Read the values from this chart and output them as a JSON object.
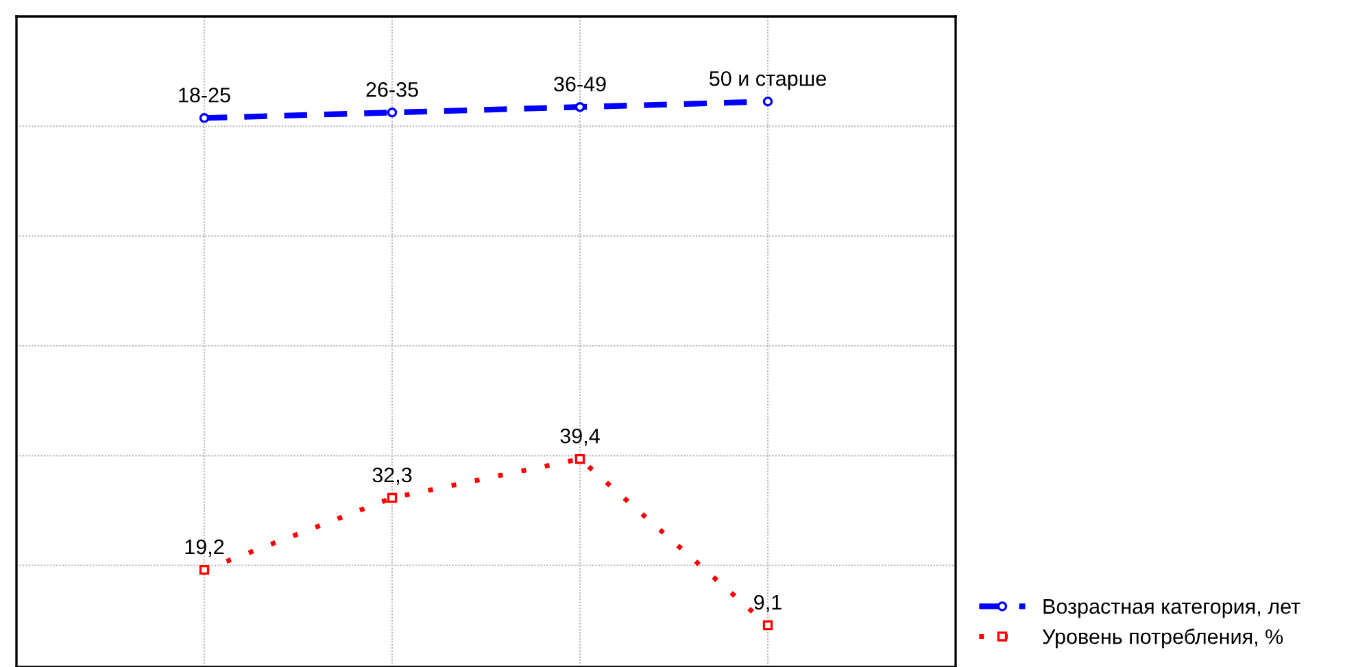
{
  "chart_data": {
    "type": "line",
    "categories": [
      "18-25",
      "26-35",
      "36-49",
      "50 и старше"
    ],
    "series": [
      {
        "name": "Возрастная категория, лет",
        "color": "#0000ff",
        "values": [
          101.5,
          102.5,
          103.5,
          104.5
        ],
        "marker": "circle",
        "line_style": "dashed"
      },
      {
        "name": "Уровень потребления, %",
        "color": "#ff0000",
        "values": [
          19.2,
          32.3,
          39.4,
          9.1
        ],
        "value_labels": [
          "19,2",
          "32,3",
          "39,4",
          "9,1"
        ],
        "marker": "square",
        "line_style": "dotted"
      }
    ],
    "ylim": [
      1.5,
      120
    ],
    "yticks": [
      {
        "value": 20,
        "label": null
      },
      {
        "value": 40,
        "label": null
      },
      {
        "value": 60,
        "label": null
      },
      {
        "value": 80,
        "label": null
      },
      {
        "value": 100,
        "label": null
      }
    ],
    "grid": true,
    "legend": "bottom right"
  }
}
